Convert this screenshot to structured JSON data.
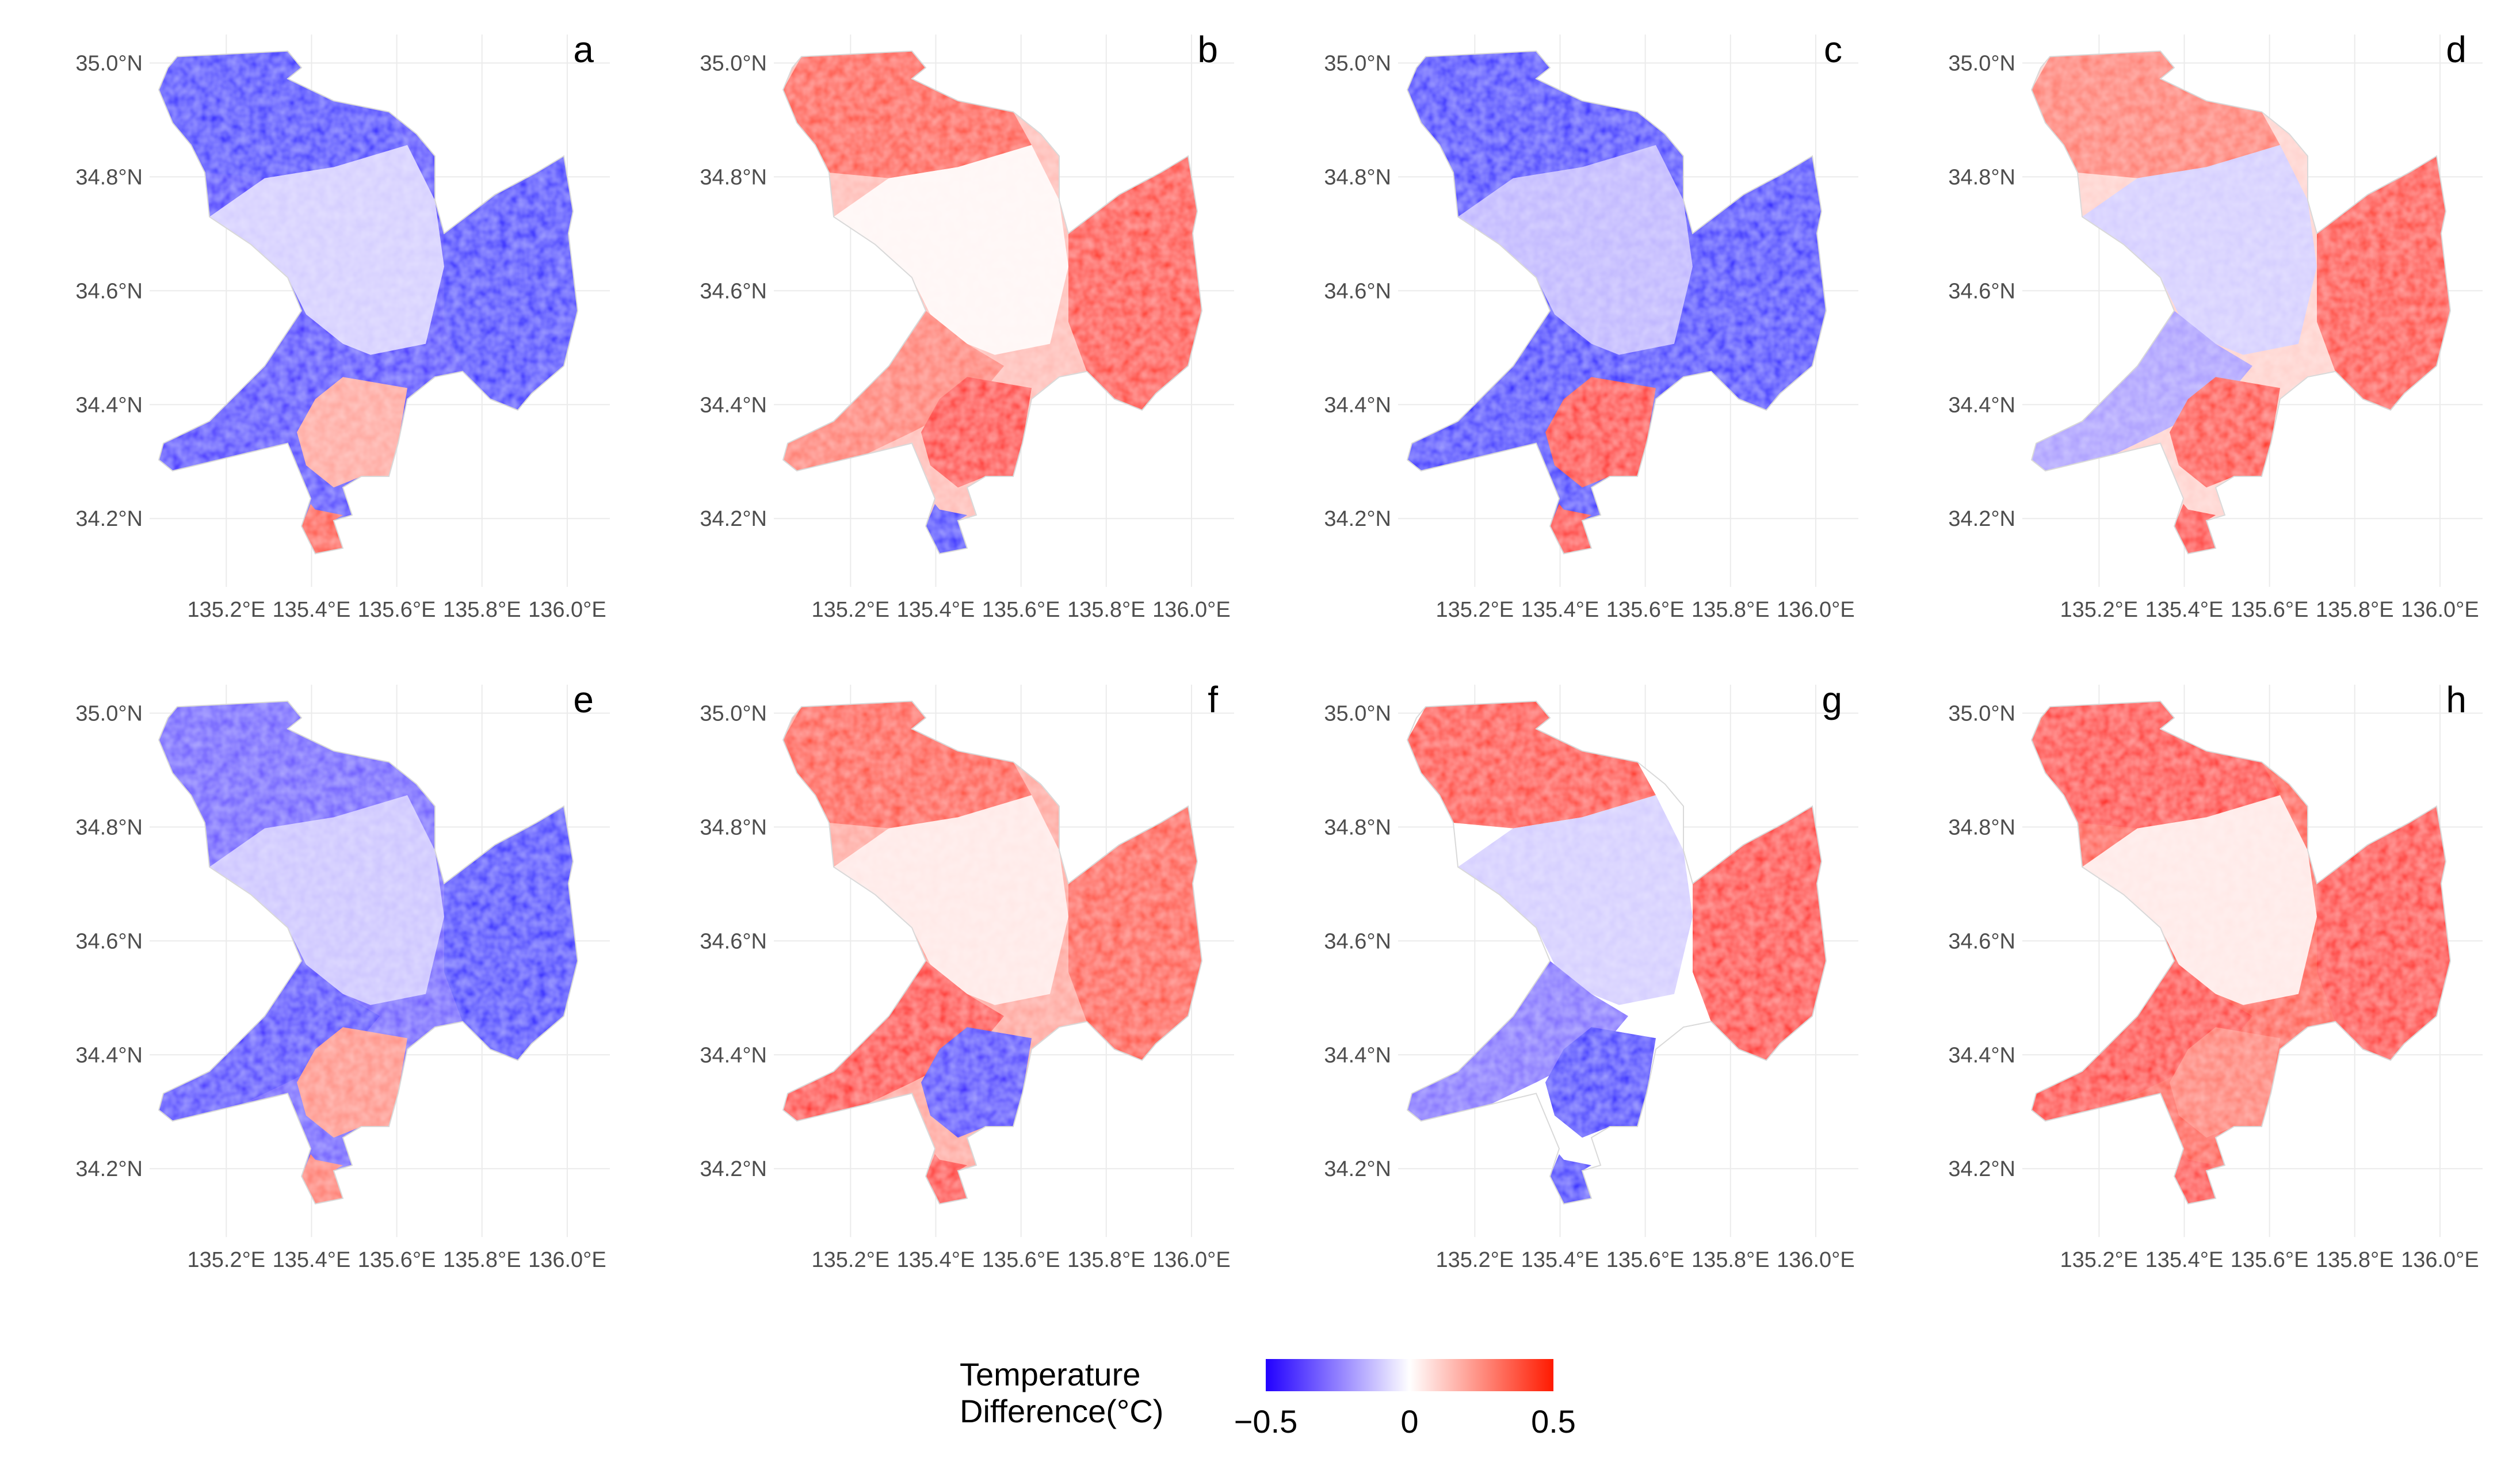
{
  "chart_data": {
    "type": "heatmap",
    "description_type": "small multiples of spatial temperature-difference maps",
    "x_axis": {
      "ticks": [
        135.2,
        135.4,
        135.6,
        135.8,
        136.0
      ],
      "tick_labels": [
        "135.2°E",
        "135.4°E",
        "135.6°E",
        "135.8°E",
        "136.0°E"
      ],
      "range": [
        135.02,
        136.1
      ]
    },
    "y_axis": {
      "ticks": [
        34.2,
        34.4,
        34.6,
        34.8,
        35.0
      ],
      "tick_labels": [
        "34.2°N",
        "34.4°N",
        "34.6°N",
        "34.8°N",
        "35.0°N"
      ],
      "range": [
        34.08,
        35.05
      ]
    },
    "panels": [
      {
        "label": "a",
        "dominant": -0.45,
        "regions": {
          "north": -0.5,
          "center": -0.1,
          "east": -0.5,
          "south_west": -0.45,
          "south": 0.2,
          "tip": 0.4
        }
      },
      {
        "label": "b",
        "dominant": 0.15,
        "regions": {
          "north": 0.4,
          "center": 0.02,
          "east": 0.45,
          "south_west": 0.3,
          "south": 0.5,
          "tip": -0.5
        }
      },
      {
        "label": "c",
        "dominant": -0.5,
        "regions": {
          "north": -0.5,
          "center": -0.15,
          "east": -0.5,
          "south_west": -0.5,
          "south": 0.5,
          "tip": 0.5
        }
      },
      {
        "label": "d",
        "dominant": 0.1,
        "regions": {
          "north": 0.3,
          "center": -0.1,
          "east": 0.45,
          "south_west": -0.2,
          "south": 0.45,
          "tip": 0.5
        }
      },
      {
        "label": "e",
        "dominant": -0.35,
        "regions": {
          "north": -0.35,
          "center": -0.12,
          "east": -0.5,
          "south_west": -0.45,
          "south": 0.25,
          "tip": 0.3
        }
      },
      {
        "label": "f",
        "dominant": 0.2,
        "regions": {
          "north": 0.4,
          "center": 0.05,
          "east": 0.4,
          "south_west": 0.5,
          "south": -0.45,
          "tip": 0.5
        }
      },
      {
        "label": "g",
        "dominant": 0.0,
        "regions": {
          "north": 0.45,
          "center": -0.1,
          "east": 0.5,
          "south_west": -0.3,
          "south": -0.5,
          "tip": -0.5
        }
      },
      {
        "label": "h",
        "dominant": 0.4,
        "regions": {
          "north": 0.5,
          "center": 0.05,
          "east": 0.5,
          "south_west": 0.5,
          "south": 0.3,
          "tip": 0.5
        }
      }
    ],
    "legend": {
      "title_line1": "Temperature",
      "title_line2": "Difference(°C)",
      "min": -0.5,
      "mid": 0,
      "max": 0.5,
      "tick_labels": [
        "−0.5",
        "0",
        "0.5"
      ],
      "low_color": "#2200ff",
      "mid_color": "#ffffff",
      "high_color": "#ff1a00"
    }
  }
}
